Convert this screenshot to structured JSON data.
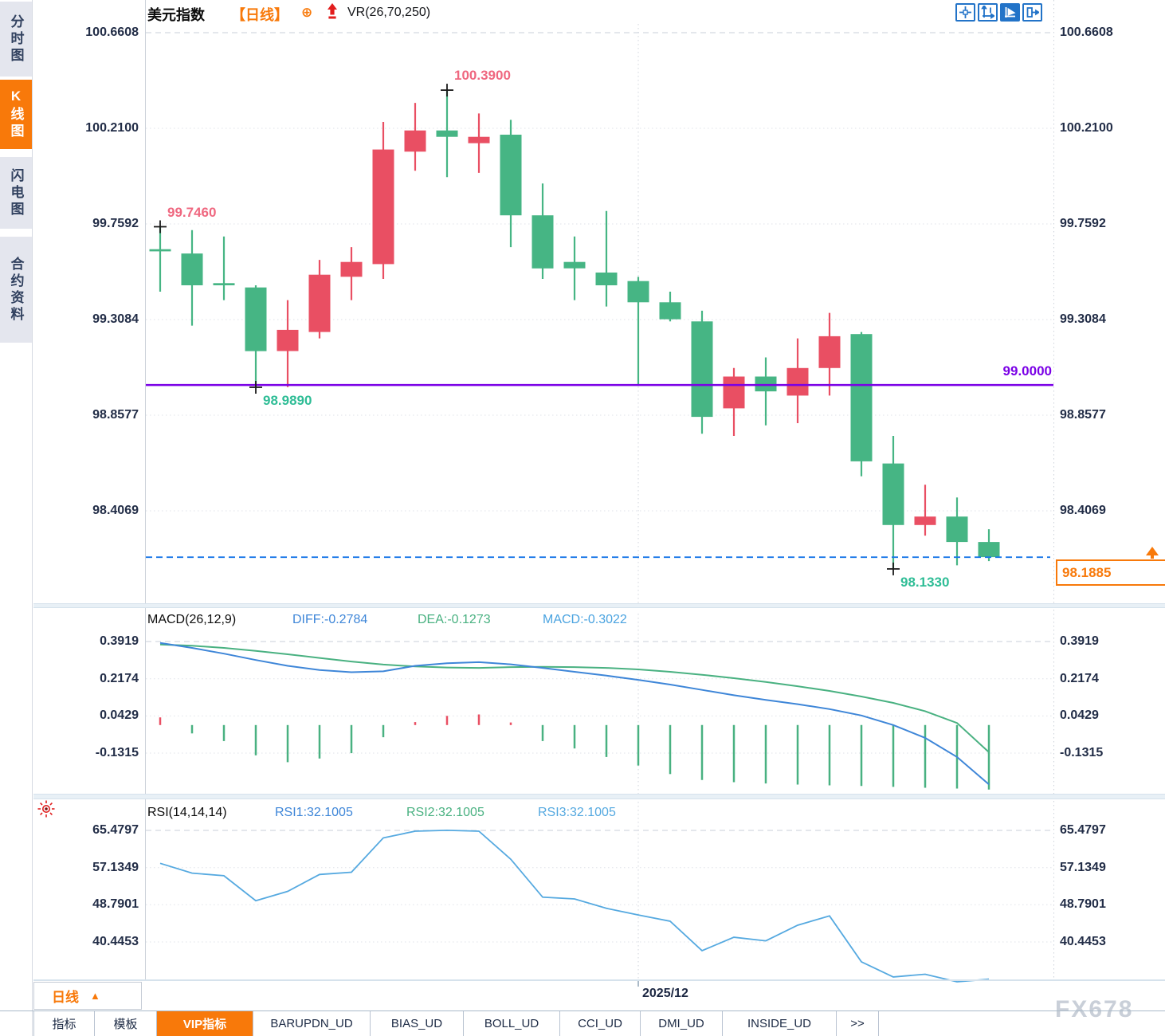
{
  "header": {
    "symbol": "美元指数",
    "period": "【日线】",
    "plus_icon": "⊕",
    "indicator": "VR(26,70,250)"
  },
  "sidebar": {
    "tabs": [
      {
        "label": "分时图",
        "active": false
      },
      {
        "label": "K线图",
        "active": true
      },
      {
        "label": "闪电图",
        "active": false
      },
      {
        "label": "合约资料",
        "active": false
      }
    ]
  },
  "toolbar": {
    "icons": [
      {
        "name": "crosshair-icon",
        "active": false
      },
      {
        "name": "axis-zoom-icon",
        "active": false
      },
      {
        "name": "auto-scale-icon",
        "active": true
      },
      {
        "name": "page-forward-icon",
        "active": false
      }
    ]
  },
  "price_panel": {
    "y_axis_labels": [
      "100.6608",
      "100.2100",
      "99.7592",
      "99.3084",
      "98.8577",
      "98.4069"
    ],
    "hline_label": "99.0000",
    "current_price": "98.1885"
  },
  "macd_panel": {
    "title": "MACD(26,12,9)",
    "diff_label": "DIFF:-0.2784",
    "dea_label": "DEA:-0.1273",
    "macd_label": "MACD:-0.3022",
    "y_axis_labels": [
      "0.3919",
      "0.2174",
      "0.0429",
      "-0.1315"
    ]
  },
  "rsi_panel": {
    "title": "RSI(14,14,14)",
    "rsi1_label": "RSI1:32.1005",
    "rsi2_label": "RSI2:32.1005",
    "rsi3_label": "RSI3:32.1005",
    "y_axis_labels": [
      "65.4797",
      "57.1349",
      "48.7901",
      "40.4453"
    ]
  },
  "bottom": {
    "period_selector": "日线",
    "period_caret": "▲",
    "date_label": "2025/12",
    "watermark": "FX678",
    "tabs": [
      {
        "label": "指标",
        "active": false
      },
      {
        "label": "模板",
        "active": false
      },
      {
        "label": "VIP指标",
        "active": true
      },
      {
        "label": "BARUPDN_UD",
        "active": false
      },
      {
        "label": "BIAS_UD",
        "active": false
      },
      {
        "label": "BOLL_UD",
        "active": false
      },
      {
        "label": "CCI_UD",
        "active": false
      },
      {
        "label": "DMI_UD",
        "active": false
      },
      {
        "label": "INSIDE_UD",
        "active": false
      },
      {
        "label": ">>",
        "active": false
      }
    ]
  },
  "colors": {
    "up": "#e94f63",
    "down": "#46b584",
    "diff_line": "#3e86d8",
    "dea_line": "#49b181",
    "rsi_line": "#55a9e0",
    "hline_purple": "#7a00e6",
    "dashed_blue": "#1877e8",
    "accent_orange": "#f8790a",
    "annotation_pink": "#ef6880",
    "annotation_green": "#2fbd96"
  },
  "chart_data": [
    {
      "type": "candlestick",
      "title": "美元指数 日线",
      "ylim": [
        98.05,
        100.7
      ],
      "y_ticks": [
        100.6608,
        100.21,
        99.7592,
        99.3084,
        98.8577,
        98.4069
      ],
      "ohlc": [
        [
          99.64,
          99.746,
          99.44,
          99.63
        ],
        [
          99.62,
          99.73,
          99.28,
          99.47
        ],
        [
          99.48,
          99.7,
          99.4,
          99.47
        ],
        [
          99.46,
          99.47,
          98.989,
          99.16
        ],
        [
          99.16,
          99.4,
          98.99,
          99.26
        ],
        [
          99.25,
          99.59,
          99.22,
          99.52
        ],
        [
          99.51,
          99.65,
          99.4,
          99.58
        ],
        [
          99.57,
          100.24,
          99.5,
          100.11
        ],
        [
          100.1,
          100.33,
          100.01,
          100.2
        ],
        [
          100.2,
          100.39,
          99.98,
          100.17
        ],
        [
          100.14,
          100.28,
          100.0,
          100.17
        ],
        [
          100.18,
          100.25,
          99.65,
          99.8
        ],
        [
          99.8,
          99.95,
          99.5,
          99.55
        ],
        [
          99.58,
          99.7,
          99.4,
          99.55
        ],
        [
          99.53,
          99.82,
          99.37,
          99.47
        ],
        [
          99.49,
          99.51,
          99.0,
          99.39
        ],
        [
          99.39,
          99.44,
          99.3,
          99.31
        ],
        [
          99.3,
          99.35,
          98.77,
          98.85
        ],
        [
          98.89,
          99.08,
          98.76,
          99.04
        ],
        [
          99.04,
          99.13,
          98.81,
          98.97
        ],
        [
          98.95,
          99.22,
          98.82,
          99.08
        ],
        [
          99.08,
          99.34,
          98.95,
          99.23
        ],
        [
          99.24,
          99.25,
          98.57,
          98.64
        ],
        [
          98.63,
          98.76,
          98.133,
          98.34
        ],
        [
          98.34,
          98.53,
          98.29,
          98.38
        ],
        [
          98.38,
          98.47,
          98.15,
          98.26
        ],
        [
          98.26,
          98.32,
          98.17,
          98.1885
        ]
      ],
      "annotations": [
        {
          "text": "99.7460",
          "candle": 1,
          "price": 99.746,
          "position": "high",
          "color": "pink"
        },
        {
          "text": "100.3900",
          "candle": 10,
          "price": 100.39,
          "position": "high",
          "color": "pink"
        },
        {
          "text": "98.9890",
          "candle": 4,
          "price": 98.989,
          "position": "low",
          "color": "green"
        },
        {
          "text": "98.1330",
          "candle": 24,
          "price": 98.133,
          "position": "low",
          "color": "green"
        }
      ],
      "hline": {
        "value": 99.0
      },
      "current_price_line": {
        "value": 98.1885
      },
      "x_axis": {
        "label": "2025/12",
        "candle": 16
      }
    },
    {
      "type": "bar+line",
      "name": "MACD",
      "ylim": [
        -0.35,
        0.45
      ],
      "y_ticks": [
        0.3919,
        0.2174,
        0.0429,
        -0.1315
      ],
      "series": [
        {
          "name": "DIFF",
          "style": "line",
          "values": [
            0.385,
            0.362,
            0.335,
            0.305,
            0.278,
            0.258,
            0.248,
            0.252,
            0.278,
            0.29,
            0.295,
            0.285,
            0.268,
            0.25,
            0.232,
            0.212,
            0.19,
            0.165,
            0.14,
            0.118,
            0.098,
            0.075,
            0.045,
            0.0,
            -0.06,
            -0.15,
            -0.2784
          ]
        },
        {
          "name": "DEA",
          "style": "line",
          "values": [
            0.378,
            0.372,
            0.362,
            0.348,
            0.332,
            0.315,
            0.298,
            0.284,
            0.275,
            0.27,
            0.268,
            0.272,
            0.273,
            0.272,
            0.268,
            0.261,
            0.25,
            0.236,
            0.22,
            0.202,
            0.182,
            0.16,
            0.134,
            0.104,
            0.065,
            0.01,
            -0.1273
          ]
        },
        {
          "name": "MACD",
          "style": "bar",
          "values": [
            0.036,
            -0.039,
            -0.075,
            -0.142,
            -0.174,
            -0.157,
            -0.132,
            -0.057,
            0.014,
            0.043,
            0.05,
            0.012,
            -0.075,
            -0.11,
            -0.15,
            -0.19,
            -0.23,
            -0.258,
            -0.268,
            -0.274,
            -0.279,
            -0.283,
            -0.286,
            -0.29,
            -0.294,
            -0.298,
            -0.3022
          ]
        }
      ]
    },
    {
      "type": "line",
      "name": "RSI",
      "ylim": [
        28,
        70
      ],
      "y_ticks": [
        65.4797,
        57.1349,
        48.7901,
        40.4453
      ],
      "series": [
        {
          "name": "RSI1",
          "values": [
            58.1,
            55.9,
            55.3,
            49.7,
            51.8,
            55.6,
            56.1,
            63.8,
            65.3,
            65.5,
            65.3,
            59.0,
            50.5,
            50.1,
            48.0,
            46.5,
            45.1,
            38.5,
            41.5,
            40.7,
            44.2,
            46.3,
            36.0,
            32.6,
            33.2,
            31.5,
            32.1
          ]
        }
      ]
    }
  ]
}
